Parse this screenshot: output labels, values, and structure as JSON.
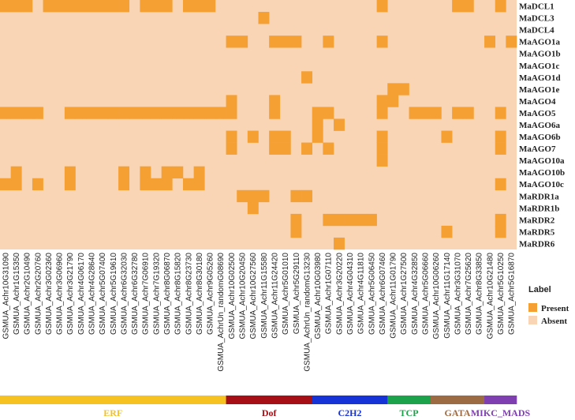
{
  "chart_data": {
    "type": "heatmap",
    "rows": [
      "MaDCL1",
      "MaDCL3",
      "MaDCL4",
      "MaAGO1a",
      "MaAGO1b",
      "MaAGO1c",
      "MaAGO1d",
      "MaAGO1e",
      "MaAGO4",
      "MaAGO5",
      "MaAGO6a",
      "MaAGO6b",
      "MaAGO7",
      "MaAGO10a",
      "MaAGO10b",
      "MaAGO10c",
      "MaRDR1a",
      "MaRDR1b",
      "MaRDR2",
      "MaRDR5",
      "MaRDR6"
    ],
    "columns": [
      "GSMUA_Achr10G31090",
      "GSMUA_Achr1G15350",
      "GSMUA_Achr2G10490",
      "GSMUA_Achr2G20760",
      "GSMUA_Achr3G02360",
      "GSMUA_Achr3G06960",
      "GSMUA_Achr3G21790",
      "GSMUA_Achr4G06170",
      "GSMUA_Achr4G28640",
      "GSMUA_Achr5G07400",
      "GSMUA_Achr5G19610",
      "GSMUA_Achr6G32030",
      "GSMUA_Achr6G32780",
      "GSMUA_Achr7G06910",
      "GSMUA_Achr7G19320",
      "GSMUA_Achr8G06870",
      "GSMUA_Achr8G15820",
      "GSMUA_Achr8G23730",
      "GSMUA_Achr8G30180",
      "GSMUA_Achr9G05260",
      "GSMUA_AchrUn_randomG08690",
      "GSMUA_Achr10G02500",
      "GSMUA_Achr10G20450",
      "GSMUA_Achr10G27560",
      "GSMUA_Achr11G15580",
      "GSMUA_Achr11G24420",
      "GSMUA_Achr5G01010",
      "GSMUA_Achr5G29110",
      "GSMUA_AchrUn_randomG13230",
      "GSMUA_Achr10G03980",
      "GSMUA_Achr1G07110",
      "GSMUA_Achr3G20220",
      "GSMUA_Achr4G04310",
      "GSMUA_Achr4G11810",
      "GSMUA_Achr5G06450",
      "GSMUA_Achr6G07460",
      "GSMUA_Achr11G01790",
      "GSMUA_Achr1G27500",
      "GSMUA_Achr4G32850",
      "GSMUA_Achr5G06660",
      "GSMUA_Achr10G06260",
      "GSMUA_Achr11G17140",
      "GSMUA_Achr3G31070",
      "GSMUA_Achr7G25620",
      "GSMUA_Achr8G33850",
      "GSMUA_Achr10G21480",
      "GSMUA_Achr5G10250",
      "GSMUA_Achr5G16870"
    ],
    "matrix": [
      [
        1,
        1,
        1,
        0,
        1,
        1,
        1,
        1,
        1,
        1,
        1,
        1,
        0,
        1,
        1,
        1,
        0,
        1,
        1,
        1,
        0,
        0,
        0,
        0,
        0,
        0,
        0,
        0,
        0,
        0,
        0,
        0,
        0,
        0,
        0,
        1,
        0,
        0,
        0,
        0,
        0,
        0,
        1,
        1,
        0,
        0,
        1,
        0
      ],
      [
        0,
        0,
        0,
        0,
        0,
        0,
        0,
        0,
        0,
        0,
        0,
        0,
        0,
        0,
        0,
        0,
        0,
        0,
        0,
        0,
        0,
        0,
        0,
        0,
        1,
        0,
        0,
        0,
        0,
        0,
        0,
        0,
        0,
        0,
        0,
        0,
        0,
        0,
        0,
        0,
        0,
        0,
        0,
        0,
        0,
        0,
        0,
        0
      ],
      [
        0,
        0,
        0,
        0,
        0,
        0,
        0,
        0,
        0,
        0,
        0,
        0,
        0,
        0,
        0,
        0,
        0,
        0,
        0,
        0,
        0,
        0,
        0,
        0,
        0,
        0,
        0,
        0,
        0,
        0,
        0,
        0,
        0,
        0,
        0,
        0,
        0,
        0,
        0,
        0,
        0,
        0,
        0,
        0,
        0,
        0,
        0,
        0
      ],
      [
        0,
        0,
        0,
        0,
        0,
        0,
        0,
        0,
        0,
        0,
        0,
        0,
        0,
        0,
        0,
        0,
        0,
        0,
        0,
        0,
        0,
        1,
        1,
        0,
        0,
        1,
        1,
        1,
        0,
        0,
        1,
        0,
        0,
        0,
        0,
        1,
        0,
        0,
        0,
        0,
        0,
        0,
        0,
        0,
        0,
        1,
        0,
        1
      ],
      [
        0,
        0,
        0,
        0,
        0,
        0,
        0,
        0,
        0,
        0,
        0,
        0,
        0,
        0,
        0,
        0,
        0,
        0,
        0,
        0,
        0,
        0,
        0,
        0,
        0,
        0,
        0,
        0,
        0,
        0,
        0,
        0,
        0,
        0,
        0,
        0,
        0,
        0,
        0,
        0,
        0,
        0,
        0,
        0,
        0,
        0,
        0,
        0
      ],
      [
        0,
        0,
        0,
        0,
        0,
        0,
        0,
        0,
        0,
        0,
        0,
        0,
        0,
        0,
        0,
        0,
        0,
        0,
        0,
        0,
        0,
        0,
        0,
        0,
        0,
        0,
        0,
        0,
        0,
        0,
        0,
        0,
        0,
        0,
        0,
        0,
        0,
        0,
        0,
        0,
        0,
        0,
        0,
        0,
        0,
        0,
        0,
        0
      ],
      [
        0,
        0,
        0,
        0,
        0,
        0,
        0,
        0,
        0,
        0,
        0,
        0,
        0,
        0,
        0,
        0,
        0,
        0,
        0,
        0,
        0,
        0,
        0,
        0,
        0,
        0,
        0,
        0,
        1,
        0,
        0,
        0,
        0,
        0,
        0,
        0,
        0,
        0,
        0,
        0,
        0,
        0,
        0,
        0,
        0,
        0,
        0,
        0
      ],
      [
        0,
        0,
        0,
        0,
        0,
        0,
        0,
        0,
        0,
        0,
        0,
        0,
        0,
        0,
        0,
        0,
        0,
        0,
        0,
        0,
        0,
        0,
        0,
        0,
        0,
        0,
        0,
        0,
        0,
        0,
        0,
        0,
        0,
        0,
        0,
        0,
        1,
        1,
        0,
        0,
        0,
        0,
        0,
        0,
        0,
        0,
        0,
        0
      ],
      [
        0,
        0,
        0,
        0,
        0,
        0,
        0,
        0,
        0,
        0,
        0,
        0,
        0,
        0,
        0,
        0,
        0,
        0,
        0,
        0,
        0,
        1,
        0,
        0,
        0,
        1,
        0,
        0,
        0,
        0,
        0,
        0,
        0,
        0,
        0,
        1,
        1,
        0,
        0,
        0,
        0,
        0,
        0,
        0,
        0,
        0,
        0,
        0
      ],
      [
        1,
        1,
        1,
        1,
        0,
        0,
        1,
        1,
        1,
        1,
        1,
        1,
        1,
        1,
        1,
        1,
        1,
        1,
        1,
        1,
        1,
        1,
        0,
        0,
        0,
        1,
        0,
        0,
        0,
        1,
        1,
        0,
        0,
        0,
        0,
        1,
        0,
        0,
        1,
        1,
        1,
        0,
        1,
        1,
        0,
        0,
        1,
        0
      ],
      [
        0,
        0,
        0,
        0,
        0,
        0,
        0,
        0,
        0,
        0,
        0,
        0,
        0,
        0,
        0,
        0,
        0,
        0,
        0,
        0,
        0,
        0,
        0,
        0,
        0,
        0,
        0,
        0,
        0,
        1,
        0,
        1,
        0,
        0,
        0,
        0,
        0,
        0,
        0,
        0,
        0,
        0,
        0,
        0,
        0,
        0,
        0,
        0
      ],
      [
        0,
        0,
        0,
        0,
        0,
        0,
        0,
        0,
        0,
        0,
        0,
        0,
        0,
        0,
        0,
        0,
        0,
        0,
        0,
        0,
        0,
        1,
        0,
        1,
        0,
        1,
        1,
        0,
        0,
        1,
        0,
        0,
        0,
        0,
        0,
        1,
        0,
        0,
        0,
        0,
        0,
        1,
        0,
        0,
        0,
        0,
        1,
        0
      ],
      [
        0,
        0,
        0,
        0,
        0,
        0,
        0,
        0,
        0,
        0,
        0,
        0,
        0,
        0,
        0,
        0,
        0,
        0,
        0,
        0,
        0,
        1,
        0,
        0,
        0,
        1,
        1,
        0,
        1,
        0,
        1,
        0,
        0,
        0,
        0,
        1,
        0,
        0,
        0,
        0,
        0,
        0,
        0,
        0,
        0,
        0,
        1,
        0
      ],
      [
        0,
        0,
        0,
        0,
        0,
        0,
        0,
        0,
        0,
        0,
        0,
        0,
        0,
        0,
        0,
        0,
        0,
        0,
        0,
        0,
        0,
        0,
        0,
        0,
        0,
        0,
        0,
        0,
        0,
        0,
        0,
        0,
        0,
        0,
        0,
        1,
        0,
        0,
        0,
        0,
        0,
        0,
        0,
        0,
        0,
        0,
        0,
        0
      ],
      [
        0,
        1,
        0,
        0,
        0,
        0,
        1,
        0,
        0,
        0,
        0,
        1,
        0,
        1,
        0,
        1,
        1,
        0,
        1,
        0,
        0,
        0,
        0,
        0,
        0,
        0,
        0,
        0,
        0,
        0,
        0,
        0,
        0,
        0,
        0,
        0,
        0,
        0,
        0,
        0,
        0,
        0,
        0,
        0,
        0,
        0,
        0,
        0
      ],
      [
        1,
        1,
        0,
        1,
        0,
        0,
        1,
        0,
        0,
        0,
        0,
        1,
        0,
        1,
        1,
        1,
        0,
        1,
        1,
        0,
        0,
        0,
        0,
        0,
        0,
        0,
        0,
        0,
        0,
        0,
        0,
        0,
        0,
        0,
        0,
        0,
        0,
        0,
        0,
        0,
        0,
        0,
        0,
        0,
        0,
        0,
        1,
        0
      ],
      [
        0,
        0,
        0,
        0,
        0,
        0,
        0,
        0,
        0,
        0,
        0,
        0,
        0,
        0,
        0,
        0,
        0,
        0,
        0,
        0,
        0,
        0,
        1,
        1,
        1,
        0,
        0,
        1,
        1,
        0,
        0,
        0,
        0,
        0,
        0,
        0,
        0,
        0,
        0,
        0,
        0,
        0,
        0,
        0,
        0,
        0,
        0,
        0
      ],
      [
        0,
        0,
        0,
        0,
        0,
        0,
        0,
        0,
        0,
        0,
        0,
        0,
        0,
        0,
        0,
        0,
        0,
        0,
        0,
        0,
        0,
        0,
        0,
        1,
        0,
        0,
        0,
        0,
        0,
        0,
        0,
        0,
        0,
        0,
        0,
        0,
        0,
        0,
        0,
        0,
        0,
        0,
        0,
        0,
        0,
        0,
        0,
        0
      ],
      [
        0,
        0,
        0,
        0,
        0,
        0,
        0,
        0,
        0,
        0,
        0,
        0,
        0,
        0,
        0,
        0,
        0,
        0,
        0,
        0,
        0,
        0,
        0,
        0,
        0,
        0,
        0,
        1,
        0,
        0,
        1,
        1,
        1,
        1,
        1,
        0,
        0,
        0,
        0,
        0,
        0,
        0,
        0,
        0,
        0,
        0,
        1,
        0
      ],
      [
        0,
        0,
        0,
        0,
        0,
        0,
        0,
        0,
        0,
        0,
        0,
        0,
        0,
        0,
        0,
        0,
        0,
        0,
        0,
        0,
        0,
        0,
        0,
        0,
        0,
        0,
        0,
        1,
        0,
        0,
        0,
        0,
        0,
        0,
        0,
        0,
        0,
        0,
        0,
        0,
        0,
        1,
        0,
        0,
        0,
        0,
        1,
        0
      ],
      [
        0,
        0,
        0,
        0,
        0,
        0,
        0,
        0,
        0,
        0,
        0,
        0,
        0,
        0,
        0,
        0,
        0,
        0,
        0,
        0,
        0,
        0,
        0,
        0,
        0,
        0,
        0,
        0,
        0,
        0,
        0,
        1,
        0,
        0,
        0,
        0,
        0,
        0,
        0,
        0,
        0,
        0,
        0,
        0,
        0,
        0,
        0,
        0
      ]
    ],
    "legend": {
      "title": "Label",
      "items": [
        {
          "label": "Present",
          "value": 1,
          "color": "#F5A033"
        },
        {
          "label": "Absent",
          "value": 0,
          "color": "#F9D5B5"
        }
      ]
    },
    "families": [
      {
        "name": "ERF",
        "count": 21,
        "color": "#F5C222"
      },
      {
        "name": "Dof",
        "count": 8,
        "color": "#A50F15"
      },
      {
        "name": "C2H2",
        "count": 7,
        "color": "#1533D6"
      },
      {
        "name": "TCP",
        "count": 4,
        "color": "#1BA24A"
      },
      {
        "name": "GATA",
        "count": 5,
        "color": "#9C6B43"
      },
      {
        "name": "MIKC_MADS",
        "count": 3,
        "color": "#7F3FB0"
      }
    ]
  }
}
